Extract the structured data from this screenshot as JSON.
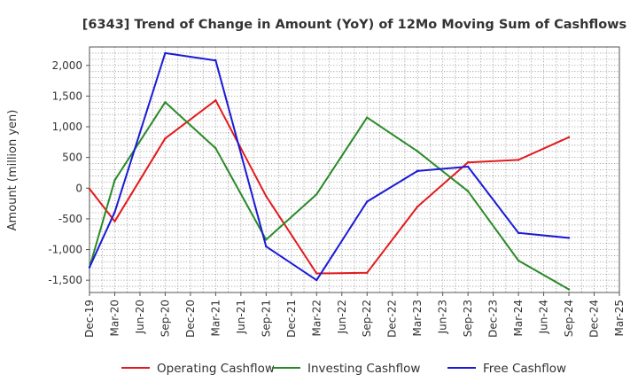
{
  "chart_data": {
    "type": "line",
    "title": "[6343]  Trend of Change in Amount (YoY) of 12Mo Moving Sum of Cashflows",
    "xlabel": "",
    "ylabel": "Amount (million yen)",
    "ylim": [
      -1700,
      2300
    ],
    "yticks": [
      2000,
      1500,
      1000,
      500,
      0,
      -500,
      -1000,
      -1500
    ],
    "ytick_labels": [
      "2,000",
      "1,500",
      "1,000",
      "500",
      "0",
      "-500",
      "-1,000",
      "-1,500"
    ],
    "categories": [
      "Dec-19",
      "Mar-20",
      "Jun-20",
      "Sep-20",
      "Dec-20",
      "Mar-21",
      "Jun-21",
      "Sep-21",
      "Dec-21",
      "Mar-22",
      "Jun-22",
      "Sep-22",
      "Dec-22",
      "Mar-23",
      "Jun-23",
      "Sep-23",
      "Dec-23",
      "Mar-24",
      "Jun-24",
      "Sep-24",
      "Dec-24",
      "Mar-25"
    ],
    "grid": true,
    "legend_position": "bottom",
    "series": [
      {
        "name": "Operating Cashflow",
        "color": "#e31a1c",
        "values": [
          -10,
          -540,
          null,
          810,
          null,
          1430,
          null,
          -130,
          null,
          -1390,
          null,
          -1380,
          null,
          -300,
          null,
          420,
          null,
          460,
          null,
          830,
          null,
          null
        ]
      },
      {
        "name": "Investing Cashflow",
        "color": "#2a8a2a",
        "values": [
          -1290,
          130,
          null,
          1400,
          null,
          650,
          null,
          -840,
          null,
          -100,
          null,
          1150,
          null,
          600,
          null,
          -50,
          null,
          -1180,
          null,
          -1650,
          null,
          null
        ]
      },
      {
        "name": "Free Cashflow",
        "color": "#1a1ad6",
        "values": [
          -1290,
          -390,
          null,
          2200,
          null,
          2080,
          null,
          -950,
          null,
          -1500,
          null,
          -220,
          null,
          280,
          null,
          350,
          null,
          -730,
          null,
          -810,
          null,
          null
        ]
      }
    ]
  }
}
